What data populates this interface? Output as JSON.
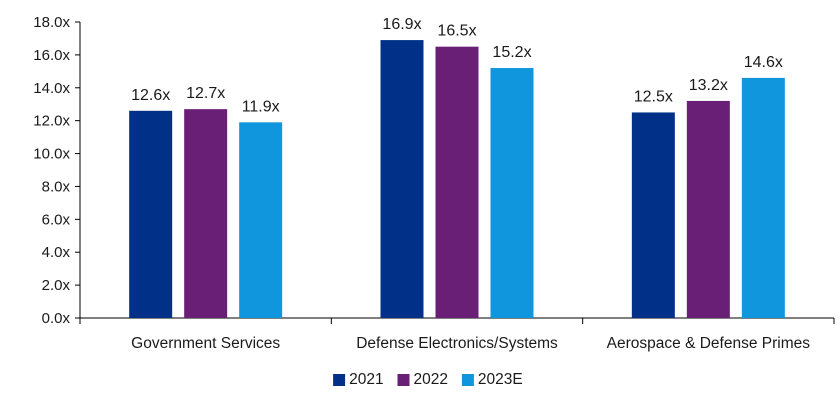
{
  "chart_data": {
    "type": "bar",
    "categories": [
      "Government Services",
      "Defense Electronics/Systems",
      "Aerospace & Defense Primes"
    ],
    "series": [
      {
        "name": "2021",
        "values": [
          12.6,
          16.9,
          12.5
        ],
        "color": "#003087"
      },
      {
        "name": "2022",
        "values": [
          12.7,
          16.5,
          13.2
        ],
        "color": "#6a1f77"
      },
      {
        "name": "2023E",
        "values": [
          11.9,
          15.2,
          14.6
        ],
        "color": "#0f96dc"
      }
    ],
    "data_labels": [
      [
        "12.6x",
        "16.9x",
        "12.5x"
      ],
      [
        "12.7x",
        "16.5x",
        "13.2x"
      ],
      [
        "11.9x",
        "15.2x",
        "14.6x"
      ]
    ],
    "y_ticks": [
      0,
      2,
      4,
      6,
      8,
      10,
      12,
      14,
      16,
      18
    ],
    "y_tick_labels": [
      "0.0x",
      "2.0x",
      "4.0x",
      "6.0x",
      "8.0x",
      "10.0x",
      "12.0x",
      "14.0x",
      "16.0x",
      "18.0x"
    ],
    "ylim": [
      0,
      18
    ],
    "grid": false,
    "legend_position": "bottom-center",
    "title": "",
    "xlabel": "",
    "ylabel": ""
  }
}
